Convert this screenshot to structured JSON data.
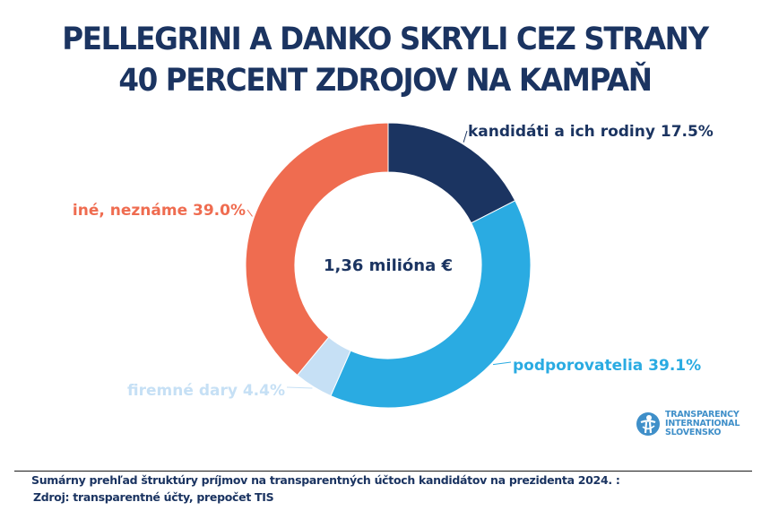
{
  "title": {
    "line1": "PELLEGRINI A DANKO SKRYLI CEZ STRANY",
    "line2": "40 PERCENT ZDROJOV NA KAMPAŇ"
  },
  "chart_data": {
    "type": "pie",
    "variant": "donut",
    "center_label": "1,36 milióna €",
    "start_angle_deg": 0,
    "direction": "clockwise",
    "slices": [
      {
        "name": "kandidáti a ich rodiny",
        "value": 17.5,
        "label": "kandidáti a ich rodiny 17.5%",
        "color": "#1b3461",
        "label_color": "#1b3461"
      },
      {
        "name": "podporovatelia",
        "value": 39.1,
        "label": "podporovatelia 39.1%",
        "color": "#2aabe2",
        "label_color": "#2aabe2"
      },
      {
        "name": "firemné dary",
        "value": 4.4,
        "label": "firemné dary 4.4%",
        "color": "#c6e0f5",
        "label_color": "#c6e0f5"
      },
      {
        "name": "iné, neznáme",
        "value": 39.0,
        "label": "iné, neznáme 39.0%",
        "color": "#ef6c50",
        "label_color": "#ef6c50"
      }
    ]
  },
  "footer": {
    "note": "Sumárny prehľad štruktúry príjmov na transparentných účtoch kandidátov na prezidenta 2024. :",
    "source": "Zdroj: transparentné účty, prepočet TIS"
  },
  "logo": {
    "icon": "transparency-international-logo-icon",
    "line1": "TRANSPARENCY",
    "line2": "INTERNATIONAL",
    "line3": "SLOVENSKO",
    "color": "#3f8fc9"
  }
}
